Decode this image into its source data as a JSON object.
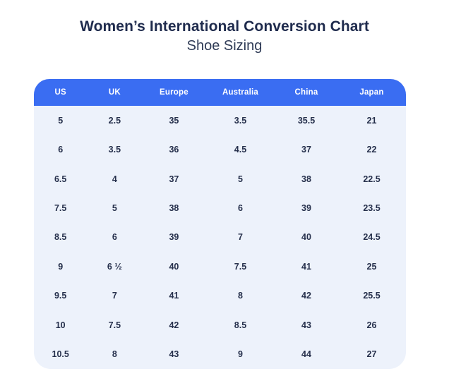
{
  "header": {
    "title": "Women’s International Conversion Chart",
    "subtitle": "Shoe Sizing"
  },
  "colors": {
    "table_header_bg": "#3a6df2",
    "table_header_text": "#ffffff",
    "table_body_bg": "#edf2fb",
    "title_text": "#1f2b4d",
    "cell_text": "#26304c",
    "page_bg": "#ffffff"
  },
  "chart_data": {
    "type": "table",
    "title": "Women’s International Conversion Chart",
    "subtitle": "Shoe Sizing",
    "columns": [
      "US",
      "UK",
      "Europe",
      "Australia",
      "China",
      "Japan"
    ],
    "rows": [
      [
        "5",
        "2.5",
        "35",
        "3.5",
        "35.5",
        "21"
      ],
      [
        "6",
        "3.5",
        "36",
        "4.5",
        "37",
        "22"
      ],
      [
        "6.5",
        "4",
        "37",
        "5",
        "38",
        "22.5"
      ],
      [
        "7.5",
        "5",
        "38",
        "6",
        "39",
        "23.5"
      ],
      [
        "8.5",
        "6",
        "39",
        "7",
        "40",
        "24.5"
      ],
      [
        "9",
        "6 ½",
        "40",
        "7.5",
        "41",
        "25"
      ],
      [
        "9.5",
        "7",
        "41",
        "8",
        "42",
        "25.5"
      ],
      [
        "10",
        "7.5",
        "42",
        "8.5",
        "43",
        "26"
      ],
      [
        "10.5",
        "8",
        "43",
        "9",
        "44",
        "27"
      ]
    ]
  }
}
